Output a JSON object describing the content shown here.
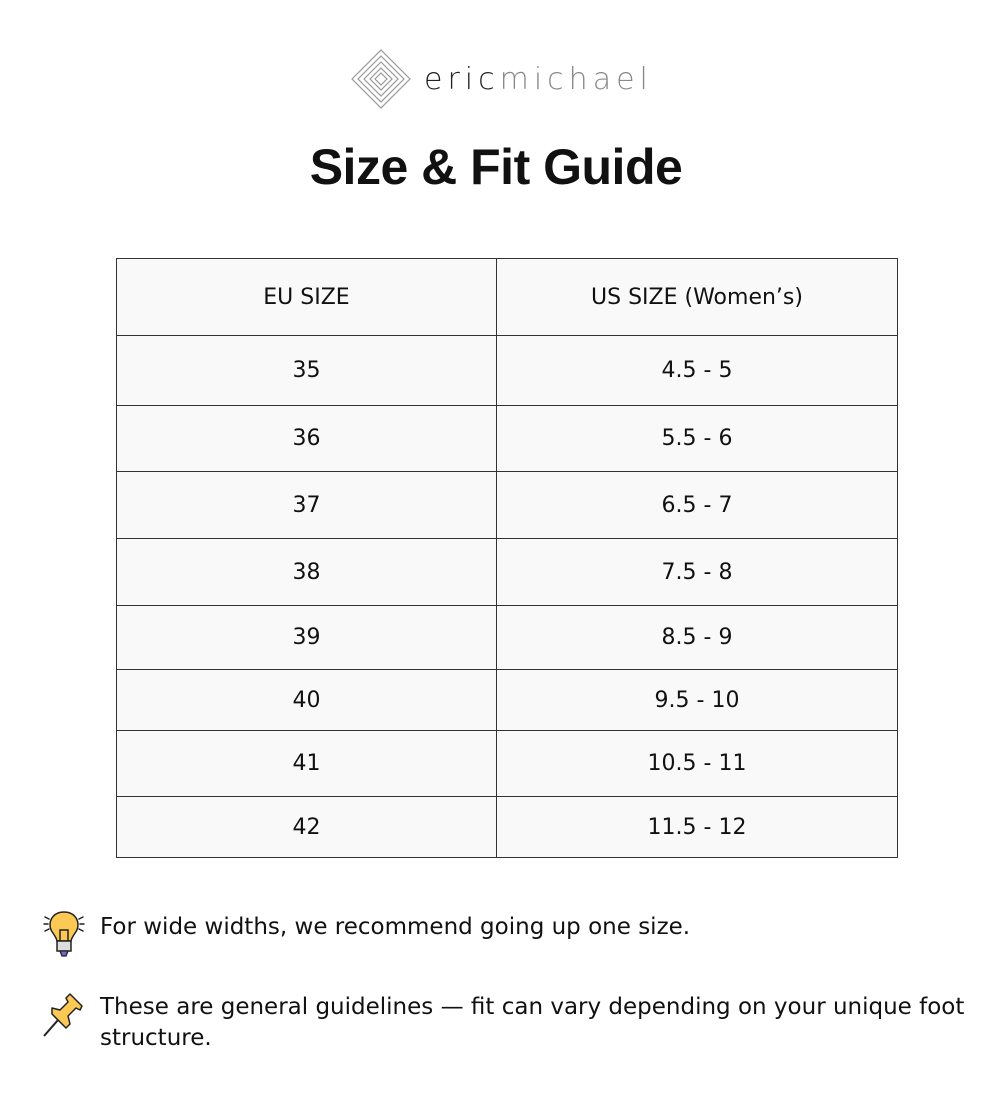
{
  "brand": {
    "name_bold": "eric",
    "name_light": "michael"
  },
  "title": "Size & Fit Guide",
  "table": {
    "headers": [
      "EU SIZE",
      "US SIZE (Women’s)"
    ],
    "rows": [
      [
        "35",
        "4.5 - 5"
      ],
      [
        "36",
        "5.5 - 6"
      ],
      [
        "37",
        "6.5 - 7"
      ],
      [
        "38",
        "7.5 - 8"
      ],
      [
        "39",
        "8.5 - 9"
      ],
      [
        "40",
        "9.5 - 10"
      ],
      [
        "41",
        "10.5 - 11"
      ],
      [
        "42",
        "11.5 - 12"
      ]
    ]
  },
  "notes": [
    {
      "icon": "lightbulb-icon",
      "text": "For wide widths, we recommend going up one size."
    },
    {
      "icon": "pushpin-icon",
      "text": "These are general guidelines — fit can vary depending on your unique foot structure."
    }
  ],
  "colors": {
    "table_bg": "#f9f9f9",
    "icon_yellow": "#fcc954"
  }
}
